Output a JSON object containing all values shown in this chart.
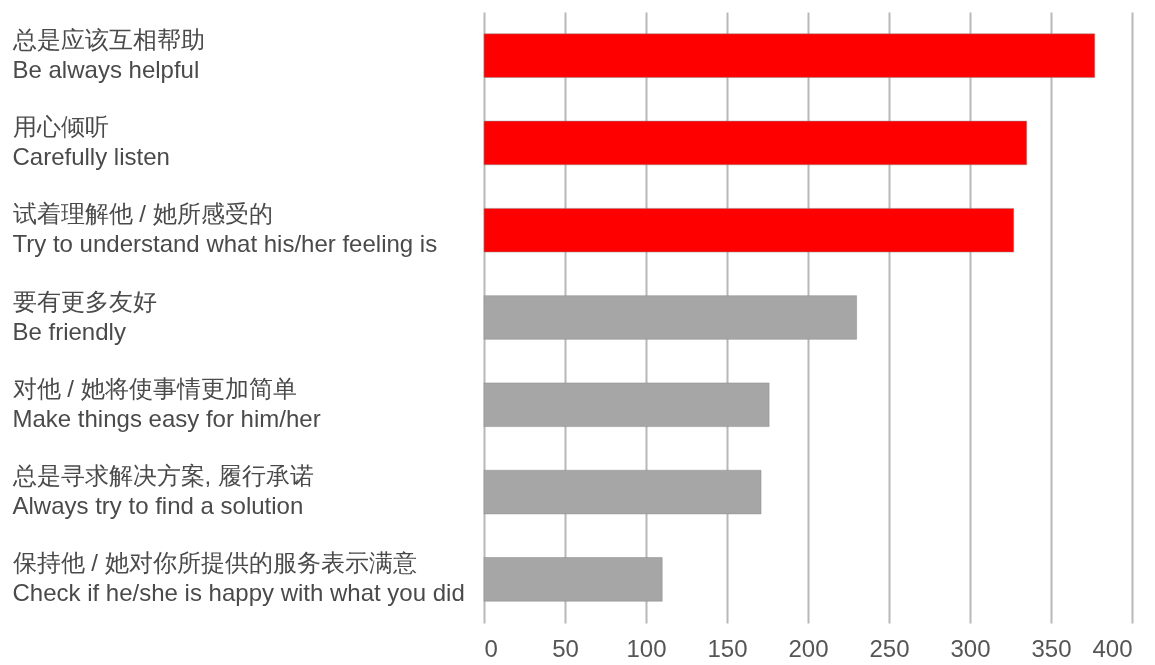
{
  "chart_data": {
    "type": "bar",
    "orientation": "horizontal",
    "categories": [
      "总是应该互相帮助\nBe always helpful",
      "用心倾听\nCarefully listen",
      "试着理解他 / 她所感受的\nTry to understand what his/her feeling is",
      "要有更多友好\nBe friendly",
      "对他 / 她将使事情更加简单\nMake things easy for him/her",
      "总是寻求解决方案, 履行承诺\nAlways try to find a solution",
      "保持他 / 她对你所提供的服务表示满意\nCheck if he/she is happy with what you did"
    ],
    "values": [
      377,
      335,
      327,
      230,
      176,
      171,
      110
    ],
    "colors": [
      "#ff0000",
      "#ff0000",
      "#ff0000",
      "#a6a6a6",
      "#a6a6a6",
      "#a6a6a6",
      "#a6a6a6"
    ],
    "xlim": [
      0,
      400
    ],
    "xticks": [
      0,
      50,
      100,
      150,
      200,
      250,
      300,
      350,
      400
    ],
    "grid": "x"
  }
}
